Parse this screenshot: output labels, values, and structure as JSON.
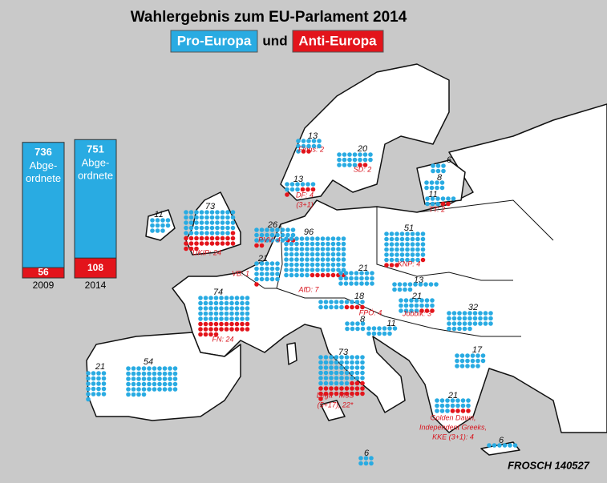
{
  "title": "Wahlergebnis zum EU-Parlament 2014",
  "legend": {
    "pro": "Pro-Europa",
    "and": "und",
    "anti": "Anti-Europa"
  },
  "bars": {
    "years": [
      "2009",
      "2014"
    ],
    "totals": [
      736,
      751
    ],
    "anti": [
      56,
      108
    ],
    "unit": [
      "Abge-",
      "ordnete"
    ],
    "pro_color": "#29abe2",
    "anti_color": "#e3141b"
  },
  "countries": {
    "seats": [
      73,
      11,
      74,
      54,
      21,
      21,
      26,
      96,
      13,
      20,
      13,
      6,
      8,
      11,
      51,
      21,
      13,
      18,
      21,
      32,
      17,
      8,
      11,
      73,
      21,
      6,
      6
    ],
    "anti": [
      24,
      null,
      24,
      null,
      null,
      1,
      4,
      7,
      4,
      2,
      2,
      null,
      null,
      2,
      4,
      null,
      null,
      4,
      3,
      null,
      null,
      null,
      null,
      22,
      4,
      null,
      null
    ],
    "party_labels": [
      [
        "UKIP: 24"
      ],
      [],
      [
        "FN: 24"
      ],
      [],
      [],
      [
        "VB: 1"
      ],
      [
        "PVV: 4"
      ],
      [
        "AfD: 7"
      ],
      [
        "DF: 4",
        "(3+1)"
      ],
      [
        "SD: 2"
      ],
      [
        "Finns: 2"
      ],
      [],
      [],
      [
        "TT: 2"
      ],
      [
        "KNP: 4"
      ],
      [],
      [],
      [
        "FPÖ: 4"
      ],
      [
        "Jobbik: 3"
      ],
      [],
      [],
      [],
      [],
      [
        "Lega · M5S",
        "(5+17), 22*"
      ],
      [
        "Golden Dawn,",
        "Independent Greeks,",
        "KKE (3+1): 4"
      ],
      [],
      []
    ]
  },
  "credit": "FROSCH 140527"
}
